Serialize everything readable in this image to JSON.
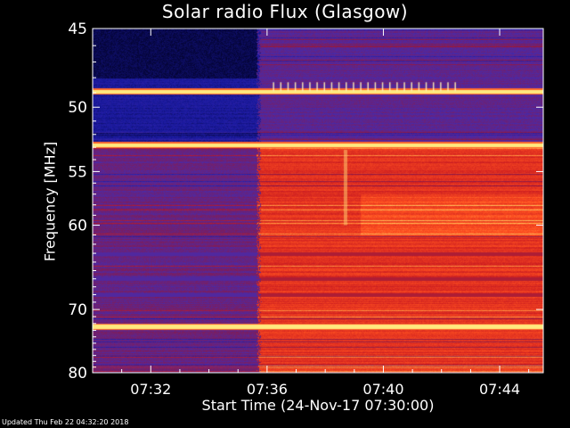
{
  "chart_data": {
    "type": "heatmap",
    "title": "Solar radio Flux (Glasgow)",
    "xlabel": "Start Time (24-Nov-17 07:30:00)",
    "ylabel": "Frequency [MHz]",
    "x_tick_labels": [
      "07:32",
      "07:36",
      "07:40",
      "07:44"
    ],
    "x_ticks_minutes": [
      2,
      6,
      10,
      14
    ],
    "x_range_minutes": [
      0,
      15.5
    ],
    "y_tick_labels": [
      "45",
      "50",
      "55",
      "60",
      "70",
      "80"
    ],
    "y_ticks": [
      45,
      50,
      55,
      60,
      70,
      80
    ],
    "y_range": [
      45,
      80
    ],
    "y_scale": "reciprocal",
    "y_axis_reversed": true,
    "colormap": [
      "#000022",
      "#1a1aa0",
      "#4a2aa8",
      "#8a1a4a",
      "#d02020",
      "#ff5020",
      "#ffb050",
      "#ffff90"
    ],
    "regions": [
      {
        "label": "before onset",
        "x_start_min": 0,
        "x_end_min": 5.7,
        "level": "low"
      },
      {
        "label": "after onset",
        "x_start_min": 5.7,
        "x_end_min": 15.5,
        "level": "high"
      }
    ],
    "bright_bands_mhz": [
      48.9,
      52.8,
      72.4
    ],
    "dark_bands_mhz": [
      63.0,
      66.0,
      68.0
    ]
  },
  "footer": {
    "updated_text": "Updated Thu Feb 22 04:32:20 2018"
  }
}
